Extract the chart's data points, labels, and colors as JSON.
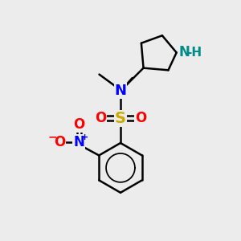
{
  "background_color": "#ececec",
  "atom_colors": {
    "C": "#000000",
    "N": "#0000ff",
    "N_teal": "#008b8b",
    "O": "#ff0000",
    "S": "#ccaa00",
    "H": "#000000"
  },
  "bond_color": "#000000",
  "bond_width": 1.8,
  "font_size_atom": 12,
  "font_size_small": 9,
  "figsize": [
    3.0,
    3.0
  ],
  "dpi": 100
}
